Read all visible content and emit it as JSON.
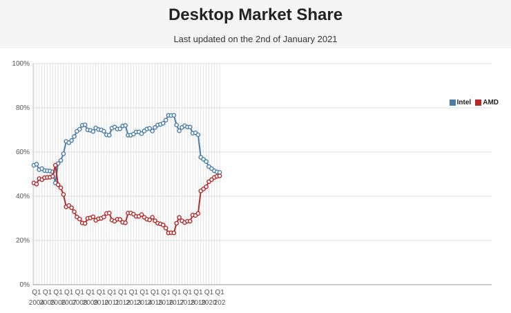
{
  "header": {
    "title": "Desktop Market Share",
    "subtitle": "Last updated on the 2nd of January 2021"
  },
  "chart_data": {
    "type": "line",
    "xlabel": "",
    "ylabel": "",
    "ylim": [
      0,
      100
    ],
    "y_ticks": [
      "0%",
      "20%",
      "40%",
      "60%",
      "80%",
      "100%"
    ],
    "x_ticks": [
      {
        "q": "Q1",
        "year": "2004"
      },
      {
        "q": "Q1",
        "year": "2005"
      },
      {
        "q": "Q1",
        "year": "2006"
      },
      {
        "q": "Q1",
        "year": "2007"
      },
      {
        "q": "Q1",
        "year": "2008"
      },
      {
        "q": "Q1",
        "year": "2009"
      },
      {
        "q": "Q1",
        "year": "2010"
      },
      {
        "q": "Q1",
        "year": "2011"
      },
      {
        "q": "Q1",
        "year": "2012"
      },
      {
        "q": "Q1",
        "year": "2013"
      },
      {
        "q": "Q1",
        "year": "2014"
      },
      {
        "q": "Q1",
        "year": "2015"
      },
      {
        "q": "Q1",
        "year": "2016"
      },
      {
        "q": "Q1",
        "year": "2017"
      },
      {
        "q": "Q1",
        "year": "2018"
      },
      {
        "q": "Q1",
        "year": "2019"
      },
      {
        "q": "Q1",
        "year": "2020"
      },
      {
        "q": "Q1",
        "year": "202"
      }
    ],
    "grid": true,
    "legend_position": "top-right",
    "series": [
      {
        "name": "Intel",
        "color": "#4a7ea8",
        "values": [
          54.0,
          54.5,
          52.0,
          52.5,
          51.6,
          51.5,
          51.4,
          51.0,
          46.0,
          54.8,
          56.2,
          59.2,
          64.8,
          64.2,
          65.2,
          67.0,
          69.4,
          70.3,
          72.1,
          72.3,
          70.0,
          69.8,
          69.3,
          70.9,
          70.2,
          70.0,
          69.4,
          67.8,
          67.6,
          70.8,
          71.3,
          70.4,
          70.5,
          71.8,
          72.0,
          67.6,
          67.6,
          68.1,
          69.1,
          69.1,
          68.3,
          69.5,
          70.4,
          70.7,
          69.5,
          71.1,
          72.2,
          72.5,
          73.0,
          74.4,
          76.6,
          76.5,
          76.6,
          72.2,
          69.6,
          71.1,
          71.9,
          71.3,
          71.3,
          68.5,
          68.7,
          67.8,
          57.6,
          56.7,
          55.7,
          53.4,
          52.5,
          51.5,
          51.0,
          50.8
        ]
      },
      {
        "name": "AMD",
        "color": "#b22a2a",
        "values": [
          46.0,
          45.5,
          48.0,
          47.5,
          48.4,
          48.5,
          48.6,
          49.0,
          54.0,
          45.2,
          43.8,
          40.8,
          35.2,
          35.8,
          34.8,
          33.0,
          30.6,
          29.7,
          27.9,
          27.7,
          30.0,
          30.2,
          30.7,
          29.1,
          29.8,
          30.0,
          30.6,
          32.2,
          32.4,
          29.2,
          28.7,
          29.6,
          29.5,
          28.2,
          28.0,
          32.4,
          32.4,
          31.9,
          30.9,
          30.9,
          31.7,
          30.5,
          29.6,
          29.3,
          30.5,
          28.9,
          27.8,
          27.5,
          27.0,
          25.6,
          23.4,
          23.5,
          23.4,
          27.8,
          30.4,
          28.9,
          28.1,
          28.7,
          28.7,
          31.5,
          31.3,
          32.2,
          42.4,
          43.3,
          44.3,
          46.6,
          47.5,
          48.5,
          49.0,
          49.2
        ]
      }
    ]
  }
}
